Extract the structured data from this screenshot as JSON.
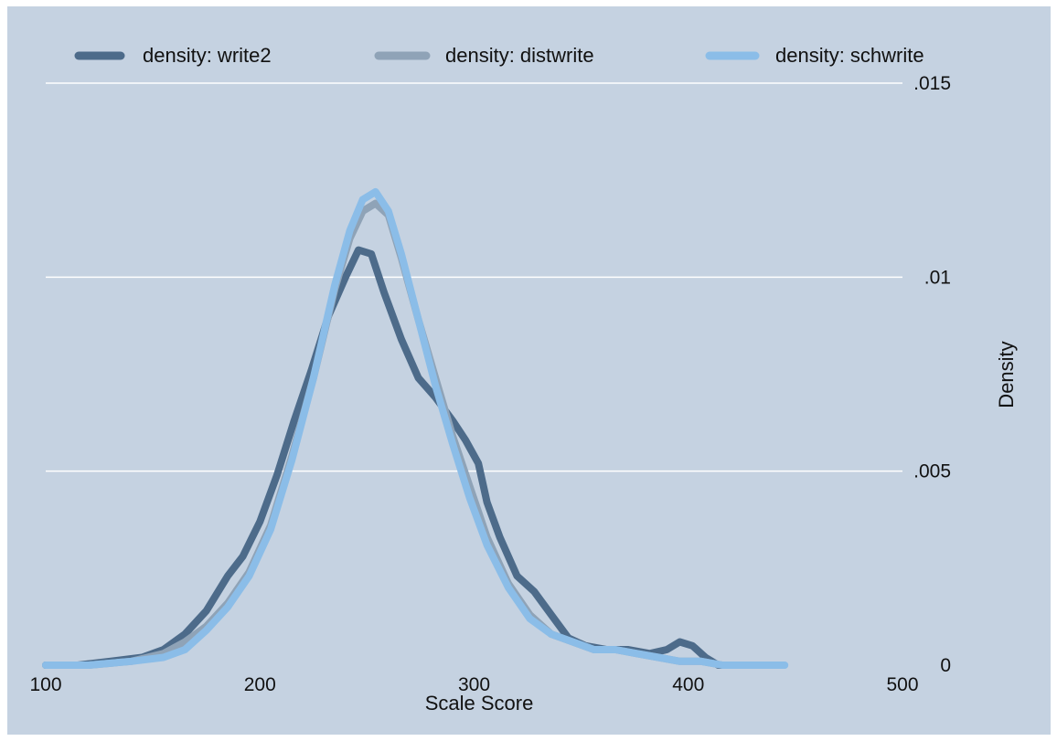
{
  "chart_data": {
    "type": "line",
    "title": "",
    "xlabel": "Scale Score",
    "ylabel": "Density",
    "xlim": [
      100,
      500
    ],
    "ylim": [
      0,
      0.015
    ],
    "x_ticks": [
      100,
      200,
      300,
      400,
      500
    ],
    "x_tick_labels": [
      "100",
      "200",
      "300",
      "400",
      "500"
    ],
    "y_ticks": [
      0,
      0.005,
      0.01,
      0.015
    ],
    "y_tick_labels": [
      "0",
      ".005",
      ".01",
      ".015"
    ],
    "y_axis_side": "right",
    "grid": "horizontal",
    "legend": "top",
    "background_color": "#c5d2e1",
    "series": [
      {
        "name": "density: write2",
        "color": "#4d6b8a",
        "x": [
          100,
          115,
          130,
          145,
          155,
          165,
          175,
          185,
          192,
          200,
          208,
          216,
          224,
          232,
          240,
          246,
          252,
          258,
          266,
          274,
          282,
          290,
          296,
          302,
          306,
          312,
          320,
          328,
          336,
          344,
          352,
          362,
          372,
          382,
          390,
          396,
          402,
          408,
          414,
          420
        ],
        "y": [
          0.0,
          0.0,
          0.0001,
          0.0002,
          0.0004,
          0.0008,
          0.0014,
          0.0023,
          0.0028,
          0.0037,
          0.0049,
          0.0063,
          0.0076,
          0.009,
          0.01,
          0.0107,
          0.0106,
          0.0096,
          0.0084,
          0.0074,
          0.0069,
          0.0063,
          0.0058,
          0.0052,
          0.0042,
          0.0033,
          0.0023,
          0.0019,
          0.0013,
          0.0007,
          0.0005,
          0.0004,
          0.0004,
          0.0003,
          0.0004,
          0.0006,
          0.0005,
          0.0002,
          0.0,
          0.0
        ]
      },
      {
        "name": "density: distwrite",
        "color": "#8fa3b7",
        "x": [
          100,
          120,
          140,
          155,
          165,
          175,
          185,
          195,
          205,
          215,
          225,
          235,
          242,
          248,
          254,
          260,
          266,
          274,
          282,
          290,
          298,
          306,
          316,
          326,
          336,
          346,
          356,
          366,
          376,
          386,
          396,
          406,
          416,
          430
        ],
        "y": [
          0.0,
          0.0,
          0.0001,
          0.0003,
          0.0006,
          0.001,
          0.0016,
          0.0024,
          0.0036,
          0.0054,
          0.0074,
          0.0097,
          0.011,
          0.0117,
          0.0119,
          0.0116,
          0.0105,
          0.0089,
          0.0074,
          0.0059,
          0.0046,
          0.0033,
          0.0021,
          0.0013,
          0.0008,
          0.0006,
          0.0004,
          0.0004,
          0.0003,
          0.0002,
          0.0001,
          0.0001,
          0.0,
          0.0
        ]
      },
      {
        "name": "density: schwrite",
        "color": "#8bbde8",
        "x": [
          100,
          120,
          140,
          155,
          165,
          175,
          185,
          195,
          205,
          215,
          225,
          235,
          242,
          248,
          254,
          260,
          266,
          274,
          282,
          290,
          298,
          306,
          316,
          326,
          336,
          346,
          356,
          366,
          376,
          386,
          396,
          406,
          416,
          430,
          445
        ],
        "y": [
          0.0,
          0.0,
          0.0001,
          0.0002,
          0.0004,
          0.0009,
          0.0015,
          0.0023,
          0.0035,
          0.0053,
          0.0074,
          0.0098,
          0.0112,
          0.012,
          0.0122,
          0.0117,
          0.0106,
          0.0089,
          0.0072,
          0.0057,
          0.0043,
          0.0031,
          0.002,
          0.0012,
          0.0008,
          0.0006,
          0.0004,
          0.0004,
          0.0003,
          0.0002,
          0.0001,
          0.0001,
          0.0,
          0.0,
          0.0
        ]
      }
    ]
  }
}
